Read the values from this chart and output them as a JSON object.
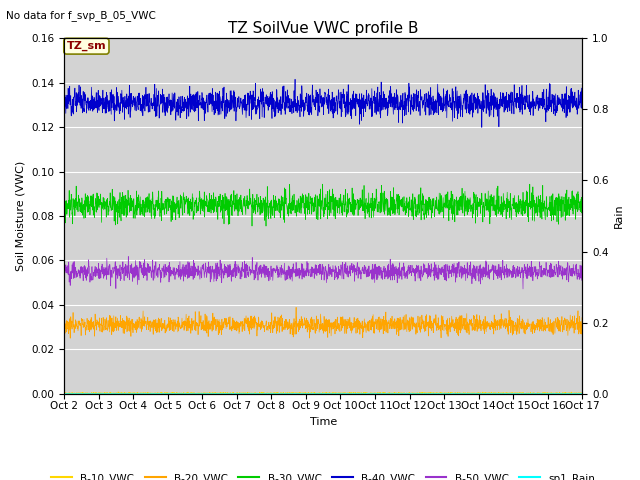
{
  "title": "TZ SoilVue VWC profile B",
  "no_data_text": "No data for f_svp_B_05_VWC",
  "xlabel": "Time",
  "ylabel": "Soil Moisture (VWC)",
  "ylabel_right": "Rain",
  "annotation": "TZ_sm",
  "ylim": [
    0.0,
    0.16
  ],
  "ylim_right": [
    0.0,
    1.0
  ],
  "xstart": 0,
  "xend": 15,
  "num_points": 2000,
  "series": [
    {
      "name": "B-10_VWC",
      "color": "#FFD700",
      "mean": 0.0002,
      "noise": 0.00015
    },
    {
      "name": "B-20_VWC",
      "color": "#FFA500",
      "mean": 0.031,
      "noise": 0.002
    },
    {
      "name": "B-30_VWC",
      "color": "#00CC00",
      "mean": 0.085,
      "noise": 0.003
    },
    {
      "name": "B-40_VWC",
      "color": "#0000CC",
      "mean": 0.131,
      "noise": 0.003
    },
    {
      "name": "B-50_VWC",
      "color": "#9932CC",
      "mean": 0.055,
      "noise": 0.002
    }
  ],
  "rain_name": "sp1_Rain",
  "rain_color": "#00FFFF",
  "background_color": "#D3D3D3",
  "tick_labels": [
    "Oct 2",
    "Oct 3",
    "Oct 4",
    "Oct 5",
    "Oct 6",
    "Oct 7",
    "Oct 8",
    "Oct 9",
    "Oct 10",
    "Oct 11",
    "Oct 12",
    "Oct 13",
    "Oct 14",
    "Oct 15",
    "Oct 16",
    "Oct 17"
  ],
  "title_fontsize": 11,
  "label_fontsize": 8,
  "tick_fontsize": 7.5,
  "anno_fontsize": 8
}
